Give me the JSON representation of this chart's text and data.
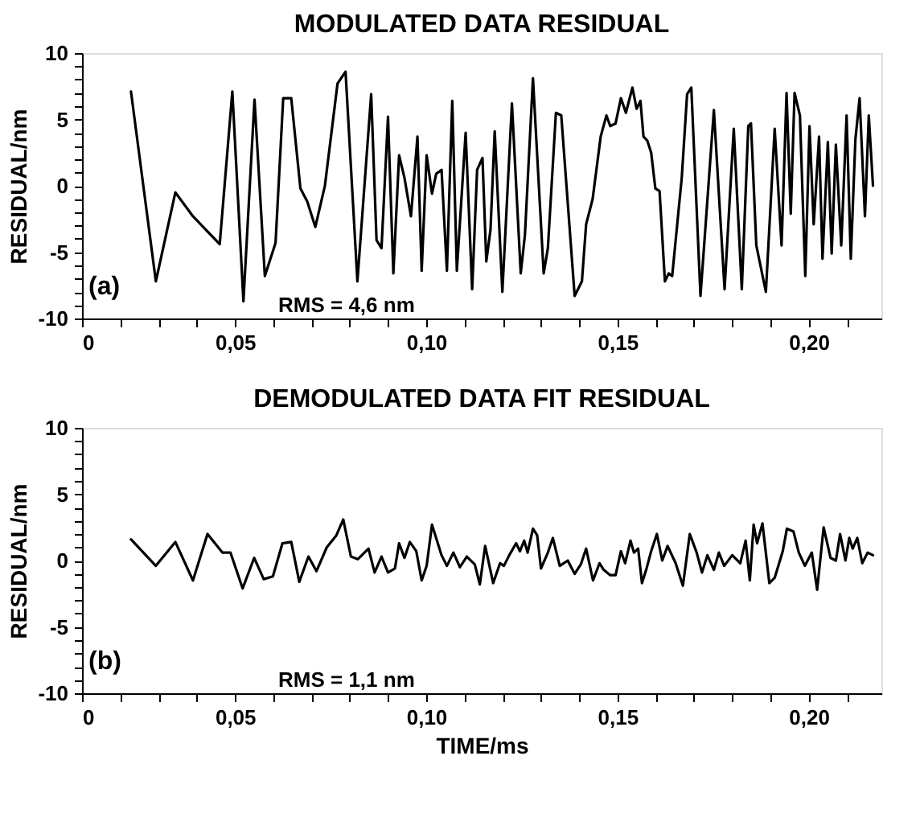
{
  "chart_data": [
    {
      "type": "line",
      "title": "MODULATED DATA RESIDUAL",
      "ylabel": "RESIDUAL/nm",
      "annotations": [
        "(a)",
        "RMS = 4,6 nm"
      ],
      "marker": "none",
      "line_style": "solid",
      "xlim": [
        0.01,
        0.219
      ],
      "ylim": [
        -10,
        10
      ],
      "xticks": [
        {
          "value": 0.01,
          "label": "0"
        },
        {
          "value": 0.02,
          "label": null
        },
        {
          "value": 0.03,
          "label": null
        },
        {
          "value": 0.04,
          "label": null
        },
        {
          "value": 0.05,
          "label": "0,05"
        },
        {
          "value": 0.06,
          "label": null
        },
        {
          "value": 0.07,
          "label": null
        },
        {
          "value": 0.08,
          "label": null
        },
        {
          "value": 0.09,
          "label": null
        },
        {
          "value": 0.1,
          "label": "0,10"
        },
        {
          "value": 0.11,
          "label": null
        },
        {
          "value": 0.12,
          "label": null
        },
        {
          "value": 0.13,
          "label": null
        },
        {
          "value": 0.14,
          "label": null
        },
        {
          "value": 0.15,
          "label": "0,15"
        },
        {
          "value": 0.16,
          "label": null
        },
        {
          "value": 0.17,
          "label": null
        },
        {
          "value": 0.18,
          "label": null
        },
        {
          "value": 0.19,
          "label": null
        },
        {
          "value": 0.2,
          "label": "0,20"
        },
        {
          "value": 0.21,
          "label": null
        }
      ],
      "yticks": [
        -10,
        {
          "value": -9,
          "label": null
        },
        {
          "value": -8,
          "label": null
        },
        {
          "value": -7,
          "label": null
        },
        {
          "value": -6,
          "label": null
        },
        -5,
        {
          "value": -4,
          "label": null
        },
        {
          "value": -3,
          "label": null
        },
        {
          "value": -2,
          "label": null
        },
        {
          "value": -1,
          "label": null
        },
        0,
        {
          "value": 1,
          "label": null
        },
        {
          "value": 2,
          "label": null
        },
        {
          "value": 3,
          "label": null
        },
        {
          "value": 4,
          "label": null
        },
        5,
        {
          "value": 6,
          "label": null
        },
        {
          "value": 7,
          "label": null
        },
        {
          "value": 8,
          "label": null
        },
        {
          "value": 9,
          "label": null
        },
        10
      ],
      "series": [
        {
          "color": "#000000",
          "x": [
            0.0228,
            0.0293,
            0.0344,
            0.039,
            0.046,
            0.0493,
            0.0522,
            0.0551,
            0.0578,
            0.0606,
            0.0626,
            0.0647,
            0.0671,
            0.0689,
            0.071,
            0.0735,
            0.0768,
            0.0789,
            0.082,
            0.0856,
            0.087,
            0.0883,
            0.09,
            0.0914,
            0.0929,
            0.0943,
            0.096,
            0.0977,
            0.0988,
            0.1001,
            0.1015,
            0.1026,
            0.104,
            0.1054,
            0.1068,
            0.108,
            0.1103,
            0.112,
            0.1133,
            0.1147,
            0.1157,
            0.1168,
            0.1179,
            0.1199,
            0.1224,
            0.1247,
            0.1258,
            0.1279,
            0.1307,
            0.1318,
            0.1339,
            0.1353,
            0.1388,
            0.1407,
            0.1418,
            0.1435,
            0.1456,
            0.1471,
            0.1481,
            0.1495,
            0.1509,
            0.1522,
            0.1539,
            0.155,
            0.156,
            0.1568,
            0.1578,
            0.1588,
            0.1599,
            0.161,
            0.1624,
            0.1634,
            0.1643,
            0.1668,
            0.1682,
            0.1693,
            0.1717,
            0.1752,
            0.178,
            0.1804,
            0.1825,
            0.1842,
            0.1849,
            0.1863,
            0.1888,
            0.1911,
            0.1929,
            0.1942,
            0.1953,
            0.1963,
            0.1977,
            0.1991,
            0.2002,
            0.2013,
            0.2027,
            0.2036,
            0.205,
            0.206,
            0.2071,
            0.2085,
            0.2099,
            0.211,
            0.2122,
            0.2133,
            0.2147,
            0.2157,
            0.2168
          ],
          "values": [
            7.1,
            -7.2,
            -0.5,
            -2.3,
            -4.4,
            7.1,
            -8.7,
            6.5,
            -6.8,
            -4.3,
            6.6,
            6.6,
            -0.2,
            -1.2,
            -3.1,
            0,
            7.7,
            8.6,
            -7.2,
            6.9,
            -4.1,
            -4.7,
            5.2,
            -6.6,
            2.3,
            0.6,
            -2.3,
            3.7,
            -6.4,
            2.3,
            -0.6,
            0.9,
            1.2,
            -6.4,
            6.4,
            -6.4,
            4.0,
            -7.8,
            1.2,
            2.1,
            -5.7,
            -3.3,
            4.1,
            -8.0,
            6.2,
            -6.6,
            -3.7,
            8.1,
            -6.6,
            -4.7,
            5.5,
            5.3,
            -8.3,
            -7.2,
            -2.9,
            -1.0,
            3.7,
            5.3,
            4.5,
            4.7,
            6.6,
            5.5,
            7.4,
            5.8,
            6.4,
            3.7,
            3.4,
            2.5,
            -0.2,
            -0.4,
            -7.2,
            -6.6,
            -6.8,
            0.6,
            6.9,
            7.4,
            -8.3,
            5.7,
            -7.8,
            4.3,
            -7.8,
            4.5,
            4.7,
            -4.5,
            -8.0,
            4.3,
            -4.5,
            7.0,
            -2.1,
            7.0,
            5.3,
            -6.8,
            4.5,
            -2.9,
            3.7,
            -5.5,
            3.3,
            -5.1,
            3.1,
            -4.5,
            5.3,
            -5.5,
            3.5,
            6.6,
            -2.3,
            5.3,
            0
          ]
        }
      ]
    },
    {
      "type": "line",
      "title": "DEMODULATED DATA FIT RESIDUAL",
      "xlabel": "TIME/ms",
      "ylabel": "RESIDUAL/nm",
      "annotations": [
        "(b)",
        "RMS = 1,1 nm"
      ],
      "marker": "none",
      "line_style": "solid",
      "xlim": [
        0.01,
        0.219
      ],
      "ylim": [
        -10,
        10
      ],
      "xticks": [
        {
          "value": 0.01,
          "label": "0"
        },
        {
          "value": 0.02,
          "label": null
        },
        {
          "value": 0.03,
          "label": null
        },
        {
          "value": 0.04,
          "label": null
        },
        {
          "value": 0.05,
          "label": "0,05"
        },
        {
          "value": 0.06,
          "label": null
        },
        {
          "value": 0.07,
          "label": null
        },
        {
          "value": 0.08,
          "label": null
        },
        {
          "value": 0.09,
          "label": null
        },
        {
          "value": 0.1,
          "label": "0,10"
        },
        {
          "value": 0.11,
          "label": null
        },
        {
          "value": 0.12,
          "label": null
        },
        {
          "value": 0.13,
          "label": null
        },
        {
          "value": 0.14,
          "label": null
        },
        {
          "value": 0.15,
          "label": "0,15"
        },
        {
          "value": 0.16,
          "label": null
        },
        {
          "value": 0.17,
          "label": null
        },
        {
          "value": 0.18,
          "label": null
        },
        {
          "value": 0.19,
          "label": null
        },
        {
          "value": 0.2,
          "label": "0,20"
        },
        {
          "value": 0.21,
          "label": null
        }
      ],
      "yticks": [
        -10,
        {
          "value": -9,
          "label": null
        },
        {
          "value": -8,
          "label": null
        },
        {
          "value": -7,
          "label": null
        },
        {
          "value": -6,
          "label": null
        },
        -5,
        {
          "value": -4,
          "label": null
        },
        {
          "value": -3,
          "label": null
        },
        {
          "value": -2,
          "label": null
        },
        {
          "value": -1,
          "label": null
        },
        0,
        {
          "value": 1,
          "label": null
        },
        {
          "value": 2,
          "label": null
        },
        {
          "value": 3,
          "label": null
        },
        {
          "value": 4,
          "label": null
        },
        5,
        {
          "value": 6,
          "label": null
        },
        {
          "value": 7,
          "label": null
        },
        {
          "value": 8,
          "label": null
        },
        {
          "value": 9,
          "label": null
        },
        10
      ],
      "series": [
        {
          "color": "#000000",
          "x": [
            0.0228,
            0.0293,
            0.0344,
            0.039,
            0.0428,
            0.0467,
            0.0488,
            0.052,
            0.055,
            0.0575,
            0.0599,
            0.0624,
            0.0647,
            0.0668,
            0.0692,
            0.0713,
            0.074,
            0.0765,
            0.0783,
            0.0803,
            0.0821,
            0.0849,
            0.0865,
            0.0883,
            0.09,
            0.0918,
            0.0929,
            0.0943,
            0.0957,
            0.0974,
            0.0988,
            0.1001,
            0.1015,
            0.104,
            0.1054,
            0.1071,
            0.1088,
            0.1106,
            0.1127,
            0.114,
            0.1154,
            0.1175,
            0.1193,
            0.1203,
            0.1217,
            0.1235,
            0.1245,
            0.1256,
            0.1265,
            0.1279,
            0.129,
            0.13,
            0.1318,
            0.1331,
            0.1349,
            0.137,
            0.1388,
            0.1404,
            0.1418,
            0.1436,
            0.1453,
            0.1464,
            0.1481,
            0.1495,
            0.1509,
            0.152,
            0.1534,
            0.1543,
            0.1554,
            0.1564,
            0.1575,
            0.1588,
            0.1603,
            0.1617,
            0.1631,
            0.1652,
            0.1671,
            0.1689,
            0.1707,
            0.1721,
            0.1735,
            0.1752,
            0.1765,
            0.1779,
            0.18,
            0.1821,
            0.1835,
            0.1846,
            0.1856,
            0.1865,
            0.1879,
            0.1897,
            0.1911,
            0.1932,
            0.1943,
            0.196,
            0.1974,
            0.199,
            0.2008,
            0.2022,
            0.2039,
            0.2057,
            0.2071,
            0.2082,
            0.2096,
            0.2106,
            0.2115,
            0.2127,
            0.214,
            0.2154,
            0.2168
          ],
          "values": [
            1.6,
            -0.4,
            1.4,
            -1.5,
            2.0,
            0.6,
            0.6,
            -2.1,
            0.2,
            -1.4,
            -1.2,
            1.3,
            1.4,
            -1.6,
            0.3,
            -0.8,
            1.0,
            1.9,
            3.1,
            0.3,
            0.1,
            0.9,
            -0.9,
            0.3,
            -0.9,
            -0.6,
            1.3,
            0.2,
            1.4,
            0.7,
            -1.5,
            -0.4,
            2.7,
            0.4,
            -0.4,
            0.6,
            -0.5,
            0.3,
            -0.3,
            -1.8,
            1.1,
            -1.7,
            -0.2,
            -0.4,
            0.4,
            1.3,
            0.7,
            1.5,
            0.6,
            2.4,
            1.9,
            -0.6,
            0.6,
            1.7,
            -0.4,
            0,
            -1.0,
            -0.3,
            0.9,
            -1.5,
            -0.2,
            -0.7,
            -1.1,
            -1.1,
            0.7,
            -0.2,
            1.5,
            0.6,
            0.9,
            -1.7,
            -0.7,
            0.7,
            2.0,
            0,
            1.1,
            -0.2,
            -1.9,
            2.0,
            0.6,
            -0.9,
            0.4,
            -0.7,
            0.6,
            -0.4,
            0.4,
            -0.2,
            1.5,
            -1.5,
            2.7,
            1.3,
            2.8,
            -1.7,
            -1.3,
            0.7,
            2.4,
            2.2,
            0.6,
            -0.4,
            0.6,
            -2.2,
            2.5,
            0.2,
            0,
            2.0,
            0,
            1.7,
            0.9,
            1.7,
            -0.2,
            0.6,
            0.4
          ]
        }
      ]
    }
  ]
}
